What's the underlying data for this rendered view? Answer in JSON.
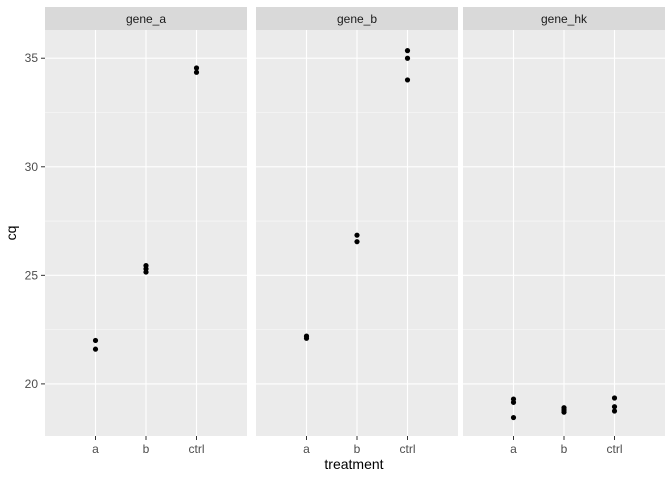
{
  "chart_data": {
    "type": "scatter",
    "xlabel": "treatment",
    "ylabel": "cq",
    "categories": [
      "a",
      "b",
      "ctrl"
    ],
    "ylim": [
      17.6,
      36.3
    ],
    "yticks": [
      20,
      25,
      30,
      35
    ],
    "grid": true,
    "colors": {
      "panel_bg": "#ebebeb",
      "strip_bg": "#d9d9d9",
      "grid_major": "#ffffff",
      "point": "#000000"
    },
    "panels": [
      {
        "label": "gene_a",
        "points": [
          {
            "x": "a",
            "y": 22.0
          },
          {
            "x": "a",
            "y": 21.6
          },
          {
            "x": "b",
            "y": 25.45
          },
          {
            "x": "b",
            "y": 25.3
          },
          {
            "x": "b",
            "y": 25.15
          },
          {
            "x": "ctrl",
            "y": 34.55
          },
          {
            "x": "ctrl",
            "y": 34.35
          }
        ]
      },
      {
        "label": "gene_b",
        "points": [
          {
            "x": "a",
            "y": 22.2
          },
          {
            "x": "a",
            "y": 22.1
          },
          {
            "x": "b",
            "y": 26.85
          },
          {
            "x": "b",
            "y": 26.55
          },
          {
            "x": "ctrl",
            "y": 35.35
          },
          {
            "x": "ctrl",
            "y": 35.0
          },
          {
            "x": "ctrl",
            "y": 34.0
          }
        ]
      },
      {
        "label": "gene_hk",
        "points": [
          {
            "x": "a",
            "y": 19.3
          },
          {
            "x": "a",
            "y": 19.15
          },
          {
            "x": "a",
            "y": 18.45
          },
          {
            "x": "b",
            "y": 18.9
          },
          {
            "x": "b",
            "y": 18.8
          },
          {
            "x": "b",
            "y": 18.7
          },
          {
            "x": "ctrl",
            "y": 19.35
          },
          {
            "x": "ctrl",
            "y": 18.95
          },
          {
            "x": "ctrl",
            "y": 18.75
          }
        ]
      }
    ]
  }
}
